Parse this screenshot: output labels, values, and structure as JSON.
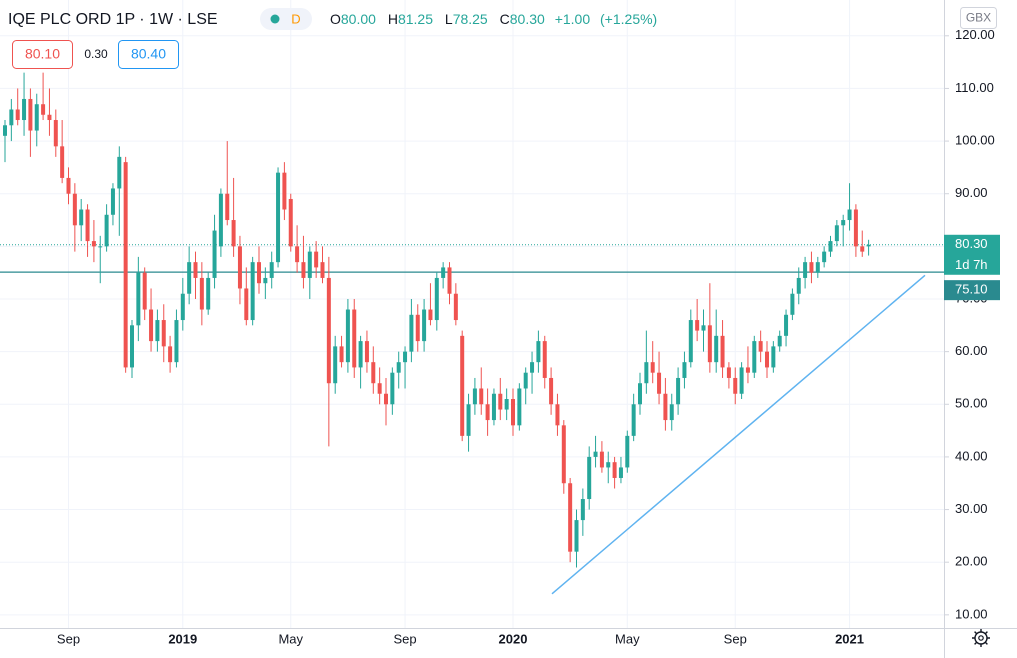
{
  "chart_data": {
    "type": "candlestick",
    "title": "IQE PLC ORD 1P · 1W · LSE",
    "badge": "D",
    "header_values": [
      {
        "key": "O",
        "text": "80.00"
      },
      {
        "key": "H",
        "text": "81.25"
      },
      {
        "key": "L",
        "text": "78.25"
      },
      {
        "key": "C",
        "text": "80.30"
      }
    ],
    "change": "+1.00",
    "change_pct": "(+1.25%)",
    "bid": "80.10",
    "spread": "0.30",
    "ask": "80.40",
    "currency": "GBX",
    "countdown": "1d 7h",
    "last_price": {
      "value": 80.3,
      "label": "80.30"
    },
    "horizontal_line": {
      "value": 75.1,
      "label": "75.10",
      "color": "#2a8a8f"
    },
    "trendline": {
      "values": [
        14,
        74.5
      ],
      "color": "#5fb3f0"
    },
    "up_color": "#26a69a",
    "down_color": "#ef5350",
    "grid": true,
    "ylim": [
      7.5,
      126.8
    ],
    "yticks": [
      {
        "value": 10,
        "label": "10.00"
      },
      {
        "value": 20,
        "label": "20.00"
      },
      {
        "value": 30,
        "label": "30.00"
      },
      {
        "value": 40,
        "label": "40.00"
      },
      {
        "value": 50,
        "label": "50.00"
      },
      {
        "value": 60,
        "label": "60.00"
      },
      {
        "value": 70,
        "label": "70.00"
      },
      {
        "value": 80,
        "label": "80.00"
      },
      {
        "value": 90,
        "label": "90.00"
      },
      {
        "value": 100,
        "label": "100.00"
      },
      {
        "value": 110,
        "label": "110.00"
      },
      {
        "value": 120,
        "label": "120.00"
      }
    ],
    "categories": [
      null,
      null,
      null,
      null,
      null,
      null,
      null,
      null,
      null,
      null,
      "Sep",
      null,
      null,
      null,
      null,
      null,
      null,
      null,
      null,
      null,
      null,
      null,
      null,
      null,
      null,
      null,
      null,
      null,
      "2019",
      null,
      null,
      null,
      null,
      null,
      null,
      null,
      null,
      null,
      null,
      null,
      null,
      null,
      null,
      null,
      null,
      "May",
      null,
      null,
      null,
      null,
      null,
      null,
      null,
      null,
      null,
      null,
      null,
      null,
      null,
      null,
      null,
      null,
      null,
      "Sep",
      null,
      null,
      null,
      null,
      null,
      null,
      null,
      null,
      null,
      null,
      null,
      null,
      null,
      null,
      null,
      null,
      "2020",
      null,
      null,
      null,
      null,
      null,
      null,
      null,
      null,
      null,
      null,
      null,
      null,
      null,
      null,
      null,
      null,
      null,
      "May",
      null,
      null,
      null,
      null,
      null,
      null,
      null,
      null,
      null,
      null,
      null,
      null,
      null,
      null,
      null,
      null,
      "Sep",
      null,
      null,
      null,
      null,
      null,
      null,
      null,
      null,
      null,
      null,
      null,
      null,
      null,
      null,
      null,
      null,
      null,
      "2021",
      null,
      null,
      null
    ],
    "open": [
      101,
      103,
      106,
      104,
      108,
      102,
      107,
      105,
      104,
      99,
      93,
      90,
      84,
      87,
      81,
      80,
      80,
      86,
      91,
      96,
      57,
      65,
      75,
      68,
      62,
      66,
      61,
      58,
      66,
      71,
      77,
      74,
      68,
      74,
      80,
      90,
      85,
      80,
      72,
      66,
      77,
      73,
      74,
      77,
      94,
      89,
      80,
      77,
      74,
      79,
      77,
      74,
      54,
      61,
      58,
      68,
      57,
      62,
      58,
      54,
      52,
      50,
      56,
      58,
      60,
      67,
      62,
      68,
      66,
      74,
      76,
      71,
      63,
      44,
      50,
      53,
      50,
      47,
      52,
      49,
      51,
      46,
      53,
      56,
      58,
      62,
      55,
      50,
      46,
      35,
      22,
      28,
      32,
      40,
      41,
      38,
      39,
      36,
      38,
      44,
      50,
      54,
      58,
      56,
      52,
      47,
      50,
      55,
      58,
      66,
      64,
      65,
      58,
      63,
      57,
      55,
      52,
      57,
      56,
      62,
      60,
      57,
      61,
      63,
      67,
      71,
      74,
      77,
      75,
      77,
      79,
      81,
      84,
      85,
      87,
      80,
      80
    ],
    "high": [
      104,
      108,
      110,
      113,
      110,
      109,
      113,
      110,
      106,
      104,
      95,
      92,
      89,
      88,
      85,
      82,
      88,
      92,
      99,
      97,
      66,
      78,
      76,
      72,
      68,
      69,
      63,
      68,
      74,
      80,
      79,
      77,
      75,
      86,
      91,
      100,
      93,
      82,
      76,
      78,
      80,
      76,
      79,
      95,
      96,
      90,
      84,
      82,
      80,
      81,
      80,
      78,
      63,
      63,
      70,
      70,
      63,
      64,
      61,
      57,
      55,
      57,
      60,
      61,
      70,
      69,
      70,
      73,
      75,
      77,
      77,
      73,
      64,
      52,
      55,
      57,
      53,
      53,
      55,
      53,
      53,
      54,
      57,
      60,
      64,
      63,
      57,
      52,
      47,
      36,
      30,
      34,
      42,
      44,
      43,
      41,
      40,
      40,
      45,
      52,
      56,
      64,
      62,
      60,
      55,
      52,
      57,
      60,
      68,
      70,
      68,
      73,
      68,
      66,
      58,
      57,
      58,
      61,
      63,
      64,
      62,
      62,
      64,
      68,
      72,
      76,
      78,
      79,
      78,
      80,
      82,
      85,
      86,
      92,
      88,
      83,
      81.25
    ],
    "low": [
      96,
      100,
      103,
      101,
      97,
      99,
      104,
      101,
      97,
      92,
      88,
      79,
      81,
      78,
      77,
      73,
      79,
      84,
      82,
      56,
      55,
      62,
      66,
      60,
      60,
      58,
      56,
      57,
      64,
      69,
      70,
      65,
      67,
      72,
      78,
      84,
      78,
      69,
      65,
      65,
      71,
      70,
      72,
      76,
      85,
      79,
      75,
      72,
      70,
      74,
      73,
      42,
      52,
      57,
      56,
      55,
      53,
      56,
      52,
      50,
      46,
      48,
      53,
      53,
      58,
      60,
      60,
      65,
      64,
      72,
      69,
      65,
      43,
      41,
      48,
      48,
      44,
      46,
      47,
      47,
      44,
      45,
      50,
      52,
      56,
      53,
      48,
      44,
      33,
      20,
      19,
      25,
      30,
      38,
      37,
      35,
      34,
      35,
      37,
      43,
      48,
      52,
      54,
      50,
      45,
      45,
      48,
      53,
      57,
      62,
      60,
      56,
      56,
      55,
      53,
      50,
      51,
      54,
      55,
      58,
      55,
      56,
      60,
      61,
      66,
      69,
      72,
      73,
      74,
      76,
      78,
      80,
      80,
      83,
      78,
      78,
      78.25
    ],
    "close": [
      103,
      106,
      104,
      108,
      102,
      107,
      105,
      104,
      99,
      93,
      90,
      84,
      87,
      81,
      80,
      80,
      86,
      91,
      97,
      57,
      65,
      75,
      68,
      62,
      66,
      61,
      58,
      66,
      71,
      77,
      74,
      68,
      74,
      83,
      90,
      85,
      80,
      72,
      66,
      77,
      73,
      74,
      77,
      94,
      87,
      80,
      77,
      74,
      79,
      76,
      74,
      54,
      61,
      58,
      68,
      57,
      62,
      58,
      54,
      52,
      50,
      56,
      58,
      60,
      67,
      62,
      68,
      66,
      74,
      76,
      71,
      66,
      44,
      50,
      53,
      50,
      47,
      52,
      49,
      51,
      46,
      53,
      56,
      58,
      62,
      55,
      50,
      46,
      35,
      22,
      28,
      32,
      40,
      41,
      38,
      39,
      36,
      38,
      44,
      50,
      54,
      58,
      56,
      52,
      47,
      50,
      55,
      58,
      66,
      64,
      65,
      58,
      63,
      57,
      55,
      52,
      57,
      56,
      62,
      60,
      57,
      61,
      63,
      67,
      71,
      74,
      77,
      75,
      77,
      79,
      81,
      84,
      85,
      87,
      80,
      79,
      80.3
    ]
  }
}
